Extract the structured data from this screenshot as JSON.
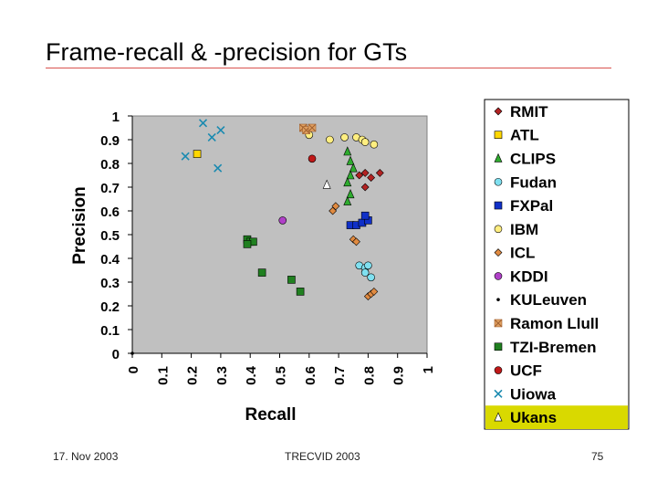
{
  "slide": {
    "title": "Frame-recall & -precision for GTs",
    "footer_left": "17. Nov 2003",
    "footer_center": "TRECVID 2003",
    "footer_right": "75"
  },
  "colors": {
    "title_rule": "#d9534f",
    "plot_area": "#c0c0c0",
    "highlight": "#d9d900"
  },
  "chart_data": {
    "type": "scatter",
    "title": "",
    "xlabel": "Recall",
    "ylabel": "Precision",
    "xlim": [
      0,
      1
    ],
    "ylim": [
      0,
      1
    ],
    "x_ticks": [
      "0",
      "0.1",
      "0.2",
      "0.3",
      "0.4",
      "0.5",
      "0.6",
      "0.7",
      "0.8",
      "0.9",
      "1"
    ],
    "y_ticks": [
      "0",
      "0.1",
      "0.2",
      "0.3",
      "0.4",
      "0.5",
      "0.6",
      "0.7",
      "0.8",
      "0.9",
      "1"
    ],
    "grid": false,
    "legend_position": "right",
    "legend_highlight": "Ukans",
    "series": [
      {
        "name": "RMIT",
        "marker": "diamond",
        "color": "#b22222",
        "points": [
          [
            0.77,
            0.75
          ],
          [
            0.79,
            0.76
          ],
          [
            0.81,
            0.74
          ],
          [
            0.84,
            0.76
          ],
          [
            0.79,
            0.7
          ]
        ]
      },
      {
        "name": "ATL",
        "marker": "square",
        "color": "#ffd700",
        "points": [
          [
            0.22,
            0.84
          ]
        ]
      },
      {
        "name": "CLIPS",
        "marker": "triangle",
        "color": "#2eab2e",
        "points": [
          [
            0.73,
            0.85
          ],
          [
            0.74,
            0.81
          ],
          [
            0.75,
            0.78
          ],
          [
            0.74,
            0.75
          ],
          [
            0.73,
            0.72
          ],
          [
            0.74,
            0.67
          ],
          [
            0.73,
            0.64
          ]
        ]
      },
      {
        "name": "Fudan",
        "marker": "circle",
        "color": "#7fe0f0",
        "points": [
          [
            0.77,
            0.37
          ],
          [
            0.79,
            0.36
          ],
          [
            0.8,
            0.37
          ],
          [
            0.79,
            0.34
          ],
          [
            0.81,
            0.32
          ]
        ]
      },
      {
        "name": "FXPal",
        "marker": "square",
        "color": "#1030c8",
        "points": [
          [
            0.74,
            0.54
          ],
          [
            0.76,
            0.54
          ],
          [
            0.78,
            0.55
          ],
          [
            0.8,
            0.56
          ],
          [
            0.79,
            0.58
          ]
        ]
      },
      {
        "name": "IBM",
        "marker": "circle",
        "color": "#ffee80",
        "points": [
          [
            0.6,
            0.92
          ],
          [
            0.67,
            0.9
          ],
          [
            0.72,
            0.91
          ],
          [
            0.76,
            0.91
          ],
          [
            0.78,
            0.9
          ],
          [
            0.79,
            0.89
          ],
          [
            0.82,
            0.88
          ]
        ]
      },
      {
        "name": "ICL",
        "marker": "diamond",
        "color": "#e08a40",
        "points": [
          [
            0.69,
            0.62
          ],
          [
            0.68,
            0.6
          ],
          [
            0.75,
            0.48
          ],
          [
            0.76,
            0.47
          ],
          [
            0.8,
            0.24
          ],
          [
            0.81,
            0.25
          ],
          [
            0.82,
            0.26
          ]
        ]
      },
      {
        "name": "KDDI",
        "marker": "circle",
        "color": "#b040c8",
        "points": [
          [
            0.51,
            0.56
          ]
        ]
      },
      {
        "name": "KULeuven",
        "marker": "dot",
        "color": "#000000",
        "points": [
          [
            0.0,
            0.0
          ]
        ]
      },
      {
        "name": "Ramon Llull",
        "marker": "xsquare",
        "color": "#e0a060",
        "points": [
          [
            0.58,
            0.95
          ],
          [
            0.59,
            0.94
          ],
          [
            0.61,
            0.95
          ]
        ]
      },
      {
        "name": "TZI-Bremen",
        "marker": "square",
        "color": "#208020",
        "points": [
          [
            0.39,
            0.48
          ],
          [
            0.4,
            0.47
          ],
          [
            0.41,
            0.47
          ],
          [
            0.39,
            0.46
          ],
          [
            0.44,
            0.34
          ],
          [
            0.54,
            0.31
          ],
          [
            0.57,
            0.26
          ]
        ]
      },
      {
        "name": "UCF",
        "marker": "octagon",
        "color": "#c01818",
        "points": [
          [
            0.61,
            0.82
          ]
        ]
      },
      {
        "name": "Uiowa",
        "marker": "x",
        "color": "#1a8ab0",
        "points": [
          [
            0.24,
            0.97
          ],
          [
            0.27,
            0.91
          ],
          [
            0.3,
            0.94
          ],
          [
            0.18,
            0.83
          ],
          [
            0.29,
            0.78
          ]
        ]
      },
      {
        "name": "Ukans",
        "marker": "triangle",
        "color": "#ffffff",
        "points": [
          [
            0.66,
            0.71
          ]
        ]
      }
    ]
  }
}
